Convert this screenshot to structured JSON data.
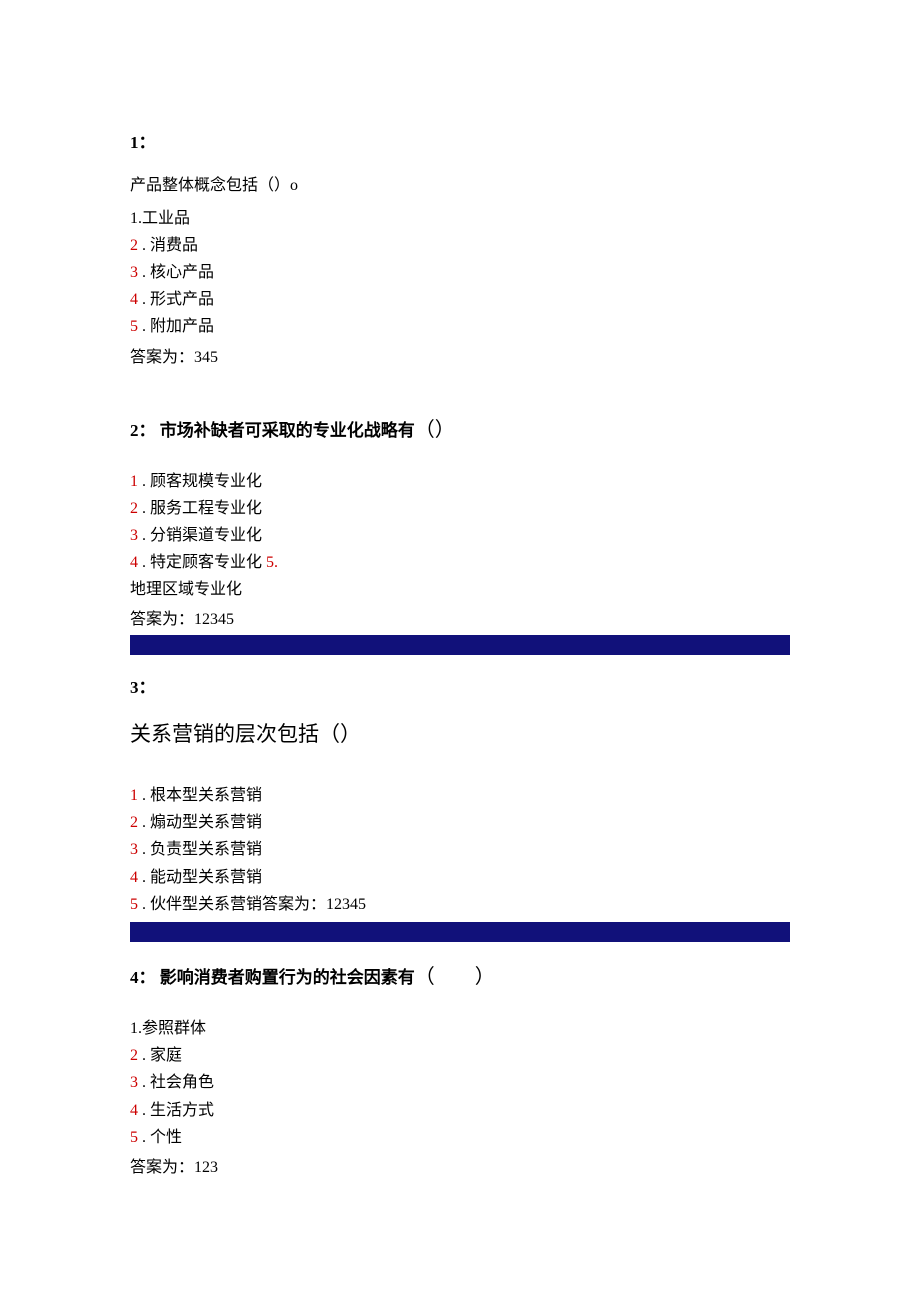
{
  "colors": {
    "number_red": "#cc0000",
    "text_black": "#000000",
    "bluebar": "#11117a",
    "background": "#ffffff"
  },
  "typography": {
    "body_fontsize": 16,
    "large_question_fontsize": 21,
    "bold_num_fontsize": 17,
    "font_family": "SimSun"
  },
  "question1": {
    "number": "1：",
    "stem": "产品整体概念包括（）o",
    "opt1_num": "1.",
    "opt1_text": "工业品",
    "opt2_num": "2",
    "opt2_text": " . 消费品",
    "opt3_num": "3",
    "opt3_text": " . 核心产品",
    "opt4_num": "4",
    "opt4_text": " . 形式产品",
    "opt5_num": "5",
    "opt5_text": " . 附加产品",
    "answer": "答案为：345"
  },
  "question2": {
    "number_prefix": "2：",
    "stem_text": "  市场补缺者可采取的专业化战略有",
    "paren": "（）",
    "opt1_num": "1",
    "opt1_text": " . 顾客规模专业化",
    "opt2_num": "2",
    "opt2_text": " . 服务工程专业化",
    "opt3_num": "3",
    "opt3_text": " . 分销渠道专业化",
    "opt4_num": "4",
    "opt4_text": " . 特定顾客专业化 ",
    "opt5_num_inline": "5.",
    "opt5_text_wrap": "地理区域专业化",
    "answer": "答案为：12345"
  },
  "question3": {
    "number": "3：",
    "stem": "关系营销的层次包括（）",
    "opt1_num": "1",
    "opt1_text": " . 根本型关系营销",
    "opt2_num": "2",
    "opt2_text": " . 煽动型关系营销",
    "opt3_num": "3",
    "opt3_text": " . 负责型关系营销",
    "opt4_num": "4",
    "opt4_text": " . 能动型关系营销",
    "opt5_num": "5",
    "opt5_text": " . 伙伴型关系营销答案为：12345"
  },
  "question4": {
    "number_prefix": "4：",
    "stem_text": "  影响消费者购置行为的社会因素有",
    "paren": "（　　）",
    "opt1_num": "1.",
    "opt1_text": "参照群体",
    "opt2_num": "2",
    "opt2_text": " . 家庭",
    "opt3_num": "3",
    "opt3_text": " . 社会角色",
    "opt4_num": "4",
    "opt4_text": " . 生活方式",
    "opt5_num": "5",
    "opt5_text": " . 个性",
    "answer": "答案为：123"
  }
}
